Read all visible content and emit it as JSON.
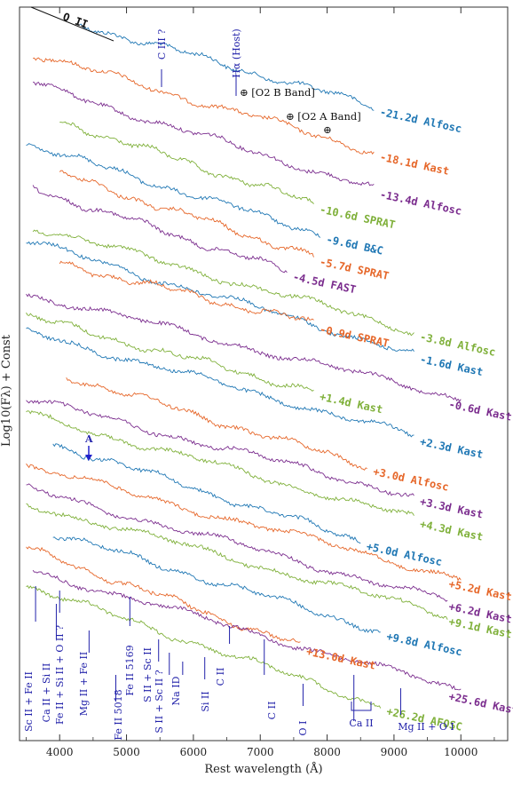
{
  "chart_data": {
    "type": "line",
    "xlabel": "Rest wavelength (Å)",
    "ylabel": "Log10(Fλ) + Const",
    "xlim": [
      3400,
      10700
    ],
    "xticks": [
      4000,
      5000,
      6000,
      7000,
      8000,
      9000,
      10000
    ],
    "xtick_labels": [
      "4000",
      "5000",
      "6000",
      "7000",
      "8000",
      "9000",
      "10000"
    ],
    "grid": false,
    "series": [
      {
        "name": "-21.2d Alfosc",
        "color": "#1f77b4",
        "x": [
          4300,
          8700
        ],
        "y": [
          0.0,
          -0.55
        ]
      },
      {
        "name": "-18.1d Kast",
        "color": "#e6672a",
        "x": [
          3600,
          8700
        ],
        "y": [
          -0.2,
          -0.85
        ]
      },
      {
        "name": "-13.4d Alfosc",
        "color": "#7b2d8e",
        "x": [
          3600,
          8700
        ],
        "y": [
          -0.4,
          -1.1
        ]
      },
      {
        "name": "-10.6d SPRAT",
        "color": "#7fb03a",
        "x": [
          4000,
          7800
        ],
        "y": [
          -0.65,
          -1.2
        ]
      },
      {
        "name": "-9.6d B&C",
        "color": "#1f77b4",
        "x": [
          3500,
          7900
        ],
        "y": [
          -0.8,
          -1.4
        ]
      },
      {
        "name": "-5.7d SPRAT",
        "color": "#e6672a",
        "x": [
          4000,
          7800
        ],
        "y": [
          -1.0,
          -1.55
        ]
      },
      {
        "name": "-4.5d FAST",
        "color": "#7b2d8e",
        "x": [
          3600,
          7400
        ],
        "y": [
          -1.1,
          -1.65
        ]
      },
      {
        "name": "-3.8d Alfosc",
        "color": "#7fb03a",
        "x": [
          3600,
          9300
        ],
        "y": [
          -1.35,
          -2.05
        ]
      },
      {
        "name": "-1.6d Kast",
        "color": "#1f77b4",
        "x": [
          3500,
          9300
        ],
        "y": [
          -1.45,
          -2.2
        ]
      },
      {
        "name": "-0.9d SPRAT",
        "color": "#e6672a",
        "x": [
          4000,
          7800
        ],
        "y": [
          -1.6,
          -2.0
        ]
      },
      {
        "name": "-0.6d Kast",
        "color": "#7b2d8e",
        "x": [
          3500,
          10000
        ],
        "y": [
          -1.8,
          -2.5
        ]
      },
      {
        "name": "+1.4d Kast",
        "color": "#7fb03a",
        "x": [
          3500,
          7800
        ],
        "y": [
          -1.95,
          -2.45
        ]
      },
      {
        "name": "+2.3d Kast",
        "color": "#1f77b4",
        "x": [
          3500,
          9300
        ],
        "y": [
          -2.05,
          -2.75
        ]
      },
      {
        "name": "+3.0d Alfosc",
        "color": "#e6672a",
        "x": [
          4100,
          8600
        ],
        "y": [
          -2.35,
          -2.95
        ]
      },
      {
        "name": "+3.3d Kast",
        "color": "#7b2d8e",
        "x": [
          3500,
          9300
        ],
        "y": [
          -2.5,
          -3.15
        ]
      },
      {
        "name": "+4.3d Kast",
        "color": "#7fb03a",
        "x": [
          3500,
          9300
        ],
        "y": [
          -2.6,
          -3.3
        ]
      },
      {
        "name": "+5.0d Alfosc",
        "color": "#1f77b4",
        "x": [
          3900,
          8500
        ],
        "y": [
          -2.8,
          -3.45
        ]
      },
      {
        "name": "+5.2d Kast",
        "color": "#e6672a",
        "x": [
          3500,
          10000
        ],
        "y": [
          -2.95,
          -3.7
        ]
      },
      {
        "name": "+6.2d Kast",
        "color": "#7b2d8e",
        "x": [
          3500,
          9800
        ],
        "y": [
          -3.1,
          -3.85
        ]
      },
      {
        "name": "+9.1d Kast",
        "color": "#7fb03a",
        "x": [
          3500,
          9800
        ],
        "y": [
          -3.2,
          -3.95
        ]
      },
      {
        "name": "+9.8d Alfosc",
        "color": "#1f77b4",
        "x": [
          3900,
          8800
        ],
        "y": [
          -3.4,
          -4.05
        ]
      },
      {
        "name": "+13.0d Kast",
        "color": "#e6672a",
        "x": [
          3500,
          7600
        ],
        "y": [
          -3.5,
          -4.15
        ]
      },
      {
        "name": "+25.6d Kast",
        "color": "#7b2d8e",
        "x": [
          3600,
          10000
        ],
        "y": [
          -3.65,
          -4.45
        ]
      },
      {
        "name": "+26.2d AFOSC",
        "color": "#7fb03a",
        "x": [
          3500,
          8800
        ],
        "y": [
          -3.75,
          -4.55
        ]
      }
    ],
    "annotations": {
      "top_labels": [
        "O II",
        "C III ?",
        "Hα (Host)",
        "⊕ [O2 B Band]",
        "⊕ [O2 A Band]"
      ],
      "feature_labels": [
        "Sc II + Fe II",
        "Ca II + Si II",
        "Fe II + Si II + O II ?",
        "Mg II + Fe II",
        "Fe II 5018",
        "Fe II 5169",
        "S II + Sc II ?",
        "S II + Sc II",
        "Na ID",
        "Si II",
        "C II",
        "C II",
        "O I",
        "Ca II",
        "Mg II + O I"
      ],
      "marker": "A"
    }
  }
}
